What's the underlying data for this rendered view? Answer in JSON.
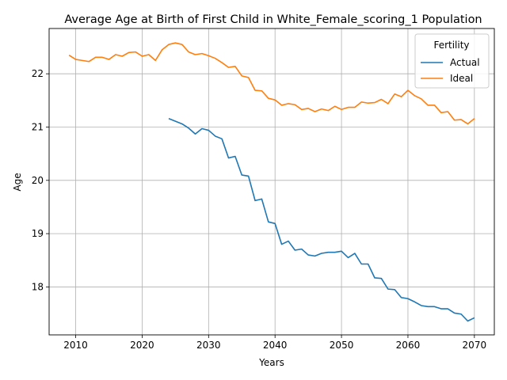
{
  "chart_data": {
    "type": "line",
    "title": "Average Age at Birth of First Child in White_Female_scoring_1 Population",
    "xlabel": "Years",
    "ylabel": "Age",
    "xlim": [
      2006,
      2073
    ],
    "ylim": [
      17.1,
      22.85
    ],
    "xticks": [
      2010,
      2020,
      2030,
      2040,
      2050,
      2060,
      2070
    ],
    "yticks": [
      18,
      19,
      20,
      21,
      22
    ],
    "grid": true,
    "legend": {
      "title": "Fertility",
      "position": "top-right"
    },
    "series": [
      {
        "name": "Actual",
        "color": "#1f77b4",
        "x": [
          2024,
          2025,
          2026,
          2027,
          2028,
          2029,
          2030,
          2031,
          2032,
          2033,
          2034,
          2035,
          2036,
          2037,
          2038,
          2039,
          2040,
          2041,
          2042,
          2043,
          2044,
          2045,
          2046,
          2047,
          2048,
          2049,
          2050,
          2051,
          2052,
          2053,
          2054,
          2055,
          2056,
          2057,
          2058,
          2059,
          2060,
          2061,
          2062,
          2063,
          2064,
          2065,
          2066,
          2067,
          2068,
          2069,
          2070
        ],
        "y": [
          21.16,
          21.11,
          21.06,
          20.98,
          20.87,
          20.97,
          20.94,
          20.83,
          20.78,
          20.42,
          20.45,
          20.1,
          20.08,
          19.62,
          19.65,
          19.22,
          19.19,
          18.8,
          18.86,
          18.69,
          18.71,
          18.6,
          18.58,
          18.63,
          18.65,
          18.65,
          18.67,
          18.55,
          18.63,
          18.43,
          18.43,
          18.17,
          18.16,
          17.96,
          17.95,
          17.8,
          17.78,
          17.72,
          17.65,
          17.63,
          17.63,
          17.59,
          17.59,
          17.51,
          17.49,
          17.36,
          17.42
        ]
      },
      {
        "name": "Ideal",
        "color": "#ff7f0e",
        "x": [
          2009,
          2010,
          2011,
          2012,
          2013,
          2014,
          2015,
          2016,
          2017,
          2018,
          2019,
          2020,
          2021,
          2022,
          2023,
          2024,
          2025,
          2026,
          2027,
          2028,
          2029,
          2030,
          2031,
          2032,
          2033,
          2034,
          2035,
          2036,
          2037,
          2038,
          2039,
          2040,
          2041,
          2042,
          2043,
          2044,
          2045,
          2046,
          2047,
          2048,
          2049,
          2050,
          2051,
          2052,
          2053,
          2054,
          2055,
          2056,
          2057,
          2058,
          2059,
          2060,
          2061,
          2062,
          2063,
          2064,
          2065,
          2066,
          2067,
          2068,
          2069,
          2070
        ],
        "y": [
          22.35,
          22.27,
          22.25,
          22.23,
          22.31,
          22.31,
          22.27,
          22.36,
          22.33,
          22.4,
          22.41,
          22.33,
          22.36,
          22.25,
          22.45,
          22.55,
          22.58,
          22.55,
          22.41,
          22.36,
          22.38,
          22.34,
          22.29,
          22.21,
          22.12,
          22.14,
          21.96,
          21.93,
          21.69,
          21.68,
          21.54,
          21.51,
          21.41,
          21.44,
          21.42,
          21.33,
          21.35,
          21.29,
          21.34,
          21.31,
          21.39,
          21.33,
          21.37,
          21.37,
          21.47,
          21.45,
          21.46,
          21.52,
          21.44,
          21.62,
          21.57,
          21.69,
          21.59,
          21.53,
          21.41,
          21.41,
          21.27,
          21.29,
          21.13,
          21.14,
          21.06,
          21.16
        ]
      }
    ]
  }
}
